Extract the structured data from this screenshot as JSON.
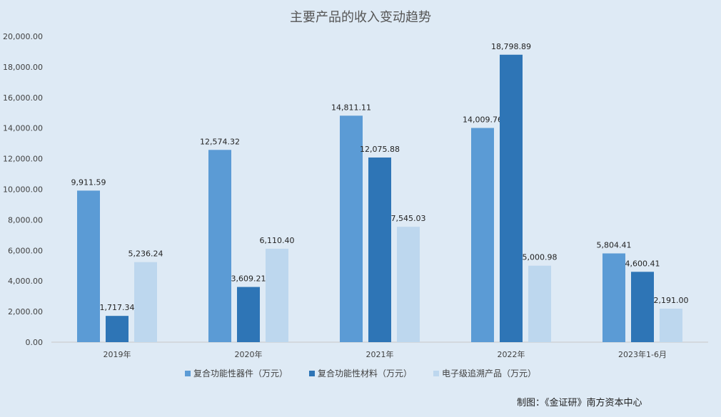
{
  "chart_data": {
    "type": "bar",
    "title": "主要产品的收入变动趋势",
    "categories": [
      "2019年",
      "2020年",
      "2021年",
      "2022年",
      "2023年1-6月"
    ],
    "series": [
      {
        "name": "复合功能性器件（万元）",
        "color": "#5b9bd5",
        "values": [
          9911.59,
          12574.32,
          14811.11,
          14009.76,
          5804.41
        ]
      },
      {
        "name": "复合功能性材料（万元）",
        "color": "#2e75b6",
        "values": [
          1717.34,
          3609.21,
          12075.88,
          18798.89,
          4600.41
        ]
      },
      {
        "name": "电子级追溯产品（万元）",
        "color": "#bdd7ee",
        "values": [
          5236.24,
          6110.4,
          7545.03,
          5000.98,
          2191.0
        ]
      }
    ],
    "data_labels": [
      [
        "9,911.59",
        "12,574.32",
        "14,811.11",
        "14,009.76",
        "5,804.41"
      ],
      [
        "1,717.34",
        "3,609.21",
        "12,075.88",
        "18,798.89",
        "4,600.41"
      ],
      [
        "5,236.24",
        "6,110.40",
        "7,545.03",
        "5,000.98",
        "2,191.00"
      ]
    ],
    "y_ticks": [
      {
        "value": 0,
        "label": "0.00"
      },
      {
        "value": 2000,
        "label": "2,000.00"
      },
      {
        "value": 4000,
        "label": "4,000.00"
      },
      {
        "value": 6000,
        "label": "6,000.00"
      },
      {
        "value": 8000,
        "label": "8,000.00"
      },
      {
        "value": 10000,
        "label": "10,000.00"
      },
      {
        "value": 12000,
        "label": "12,000.00"
      },
      {
        "value": 14000,
        "label": "14,000.00"
      },
      {
        "value": 16000,
        "label": "16,000.00"
      },
      {
        "value": 18000,
        "label": "18,000.00"
      },
      {
        "value": 20000,
        "label": "20,000.00"
      }
    ],
    "ylim": [
      0,
      20000
    ],
    "grid": false,
    "legend_position": "bottom"
  },
  "source_note": "制图：《金证研》南方资本中心"
}
